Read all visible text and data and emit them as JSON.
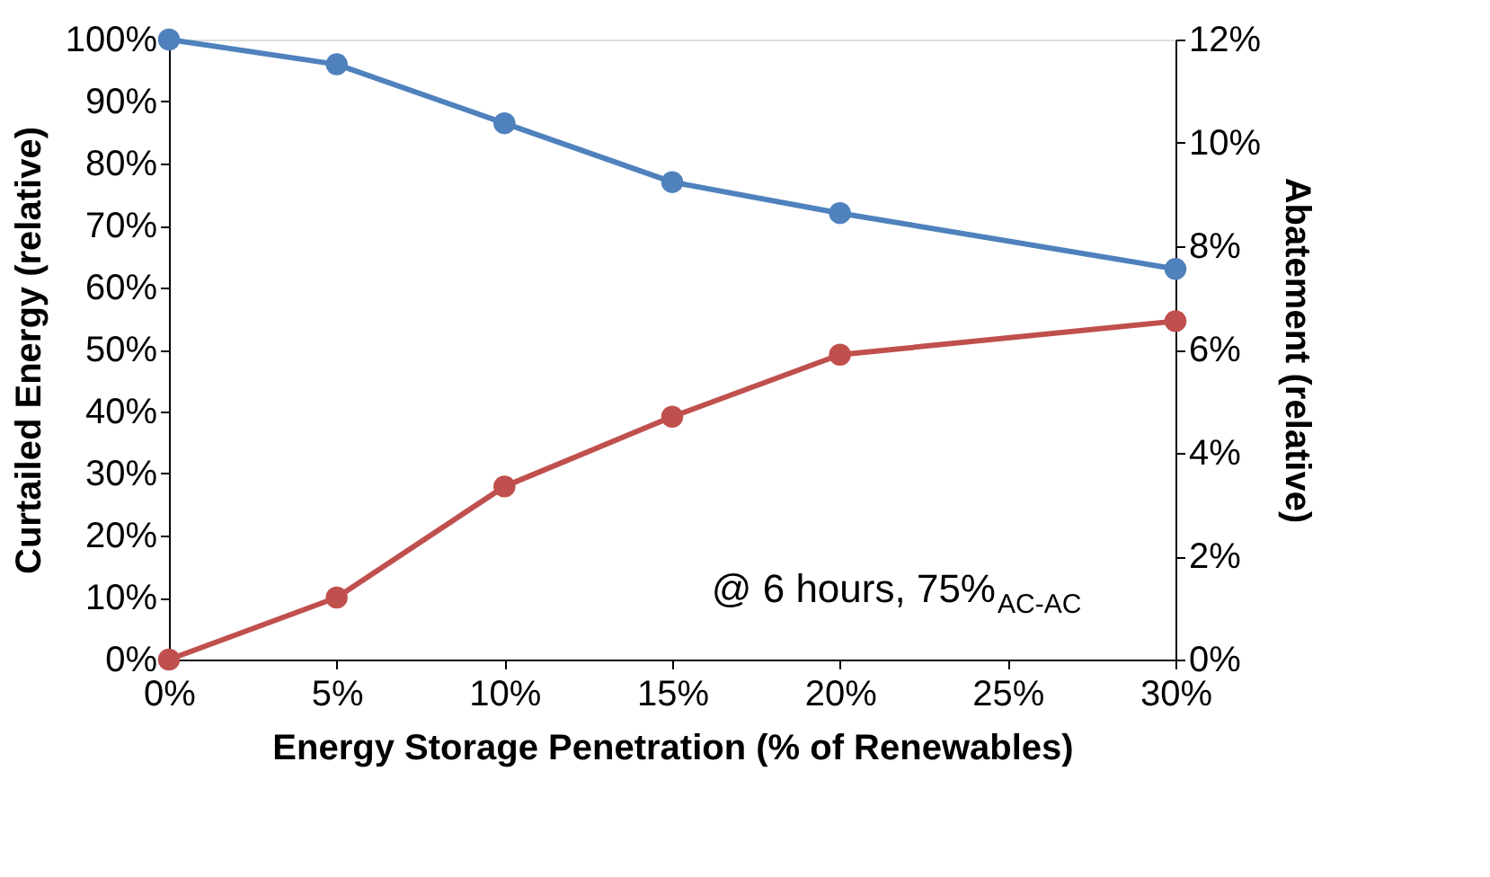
{
  "chart_data": {
    "type": "line",
    "xlabel": "Energy Storage Penetration (% of Renewables)",
    "ylabel": "Curtailed Energy (relative)",
    "y2label": "Abatement (relative)",
    "x": [
      0,
      5,
      10,
      15,
      20,
      30
    ],
    "series": [
      {
        "color": "#4f81bd",
        "values": [
          100,
          96,
          86.5,
          77,
          72,
          63
        ]
      },
      {
        "color": "#c0504d",
        "axis": "y2",
        "values": [
          0,
          1.2,
          3.35,
          4.7,
          5.9,
          6.55
        ]
      }
    ],
    "xlim": [
      0,
      30
    ],
    "xticks": [
      {
        "value": 0,
        "label": "0%"
      },
      {
        "value": 5,
        "label": "5%"
      },
      {
        "value": 10,
        "label": "10%"
      },
      {
        "value": 15,
        "label": "15%"
      },
      {
        "value": 20,
        "label": "20%"
      },
      {
        "value": 25,
        "label": "25%"
      },
      {
        "value": 30,
        "label": "30%"
      }
    ],
    "ylim": [
      0,
      100
    ],
    "yticks": [
      {
        "value": 0,
        "label": "0%"
      },
      {
        "value": 10,
        "label": "10%"
      },
      {
        "value": 20,
        "label": "20%"
      },
      {
        "value": 30,
        "label": "30%"
      },
      {
        "value": 40,
        "label": "40%"
      },
      {
        "value": 50,
        "label": "50%"
      },
      {
        "value": 60,
        "label": "60%"
      },
      {
        "value": 70,
        "label": "70%"
      },
      {
        "value": 80,
        "label": "80%"
      },
      {
        "value": 90,
        "label": "90%"
      },
      {
        "value": 100,
        "label": "100%"
      }
    ],
    "y2lim": [
      0,
      12
    ],
    "y2ticks": [
      {
        "value": 0,
        "label": "0%"
      },
      {
        "value": 2,
        "label": "2%"
      },
      {
        "value": 4,
        "label": "4%"
      },
      {
        "value": 6,
        "label": "6%"
      },
      {
        "value": 8,
        "label": "8%"
      },
      {
        "value": 10,
        "label": "10%"
      },
      {
        "value": 12,
        "label": "12%"
      }
    ],
    "annotations": [
      "@ 6 hours, 75%$_{AC-AC}$"
    ],
    "marker": "circle",
    "line_style": "solid",
    "grid": false
  }
}
